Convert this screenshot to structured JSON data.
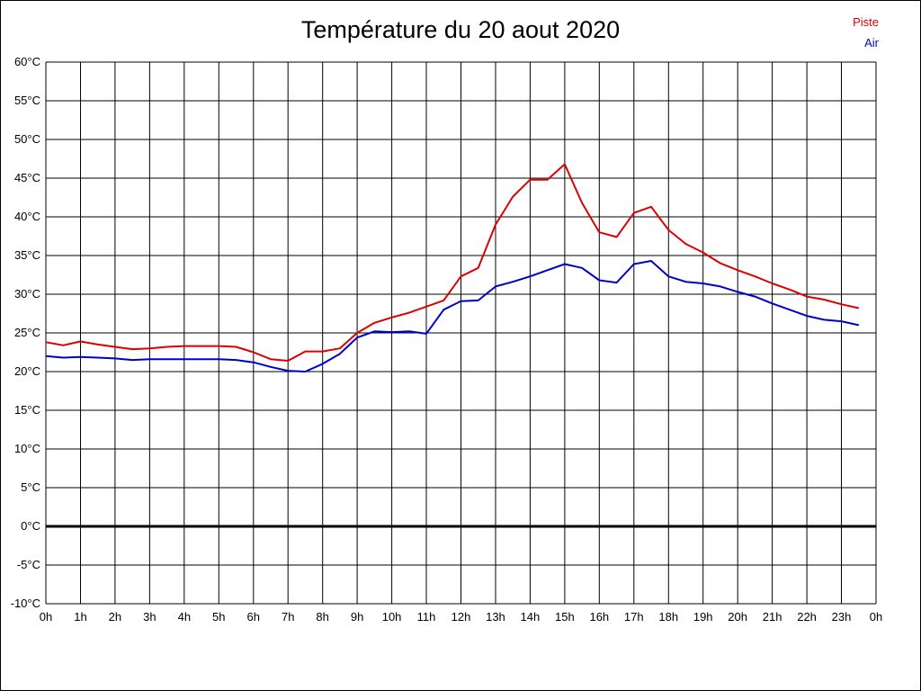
{
  "title": "Température du 20 aout 2020",
  "legend": {
    "items": [
      {
        "label": "Piste",
        "color": "#d40000"
      },
      {
        "label": "Air",
        "color": "#0000cc"
      }
    ]
  },
  "chart_data": {
    "type": "line",
    "title": "Température du 20 aout 2020",
    "xlabel": "",
    "ylabel": "",
    "xlim": [
      0,
      24
    ],
    "ylim": [
      -10,
      60
    ],
    "x_tick_step": 1,
    "y_tick_step": 5,
    "grid": true,
    "zero_line_bold": true,
    "legend_position": "top-right",
    "x_tick_labels": [
      "0h",
      "1h",
      "2h",
      "3h",
      "4h",
      "5h",
      "6h",
      "7h",
      "8h",
      "9h",
      "10h",
      "11h",
      "12h",
      "13h",
      "14h",
      "15h",
      "16h",
      "17h",
      "18h",
      "19h",
      "20h",
      "21h",
      "22h",
      "23h",
      "0h"
    ],
    "y_tick_labels": [
      "60°C",
      "55°C",
      "50°C",
      "45°C",
      "40°C",
      "35°C",
      "30°C",
      "25°C",
      "20°C",
      "15°C",
      "10°C",
      "5°C",
      "0°C",
      "-5°C",
      "-10°C"
    ],
    "x": [
      0,
      0.5,
      1,
      1.5,
      2,
      2.5,
      3,
      3.5,
      4,
      4.5,
      5,
      5.5,
      6,
      6.5,
      7,
      7.5,
      8,
      8.5,
      9,
      9.5,
      10,
      10.5,
      11,
      11.5,
      12,
      12.5,
      13,
      13.5,
      14,
      14.5,
      15,
      15.5,
      16,
      16.5,
      17,
      17.5,
      18,
      18.5,
      19,
      19.5,
      20,
      20.5,
      21,
      21.5,
      22,
      22.5,
      23,
      23.5
    ],
    "series": [
      {
        "name": "Piste",
        "color": "#dd0000",
        "values": [
          23.8,
          23.4,
          23.9,
          23.5,
          23.2,
          22.9,
          23.0,
          23.2,
          23.3,
          23.3,
          23.3,
          23.2,
          22.5,
          21.6,
          21.4,
          22.6,
          22.6,
          23.0,
          25.0,
          26.3,
          27.0,
          27.6,
          28.4,
          29.2,
          32.3,
          33.4,
          39.0,
          42.6,
          44.8,
          44.8,
          46.8,
          41.8,
          38.0,
          37.4,
          40.5,
          41.3,
          38.3,
          36.5,
          35.4,
          34.0,
          33.1,
          32.3,
          31.4,
          30.6,
          29.7,
          29.3,
          28.7,
          28.2
        ]
      },
      {
        "name": "Air",
        "color": "#0000cc",
        "values": [
          22.0,
          21.8,
          21.9,
          21.8,
          21.7,
          21.5,
          21.6,
          21.6,
          21.6,
          21.6,
          21.6,
          21.5,
          21.2,
          20.6,
          20.1,
          20.0,
          21.0,
          22.3,
          24.4,
          25.2,
          25.1,
          25.2,
          24.9,
          28.0,
          29.1,
          29.2,
          31.0,
          31.6,
          32.3,
          33.1,
          33.9,
          33.4,
          31.8,
          31.5,
          33.9,
          34.3,
          32.3,
          31.6,
          31.4,
          31.0,
          30.3,
          29.7,
          28.8,
          28.0,
          27.2,
          26.7,
          26.5,
          26.0
        ]
      }
    ]
  }
}
